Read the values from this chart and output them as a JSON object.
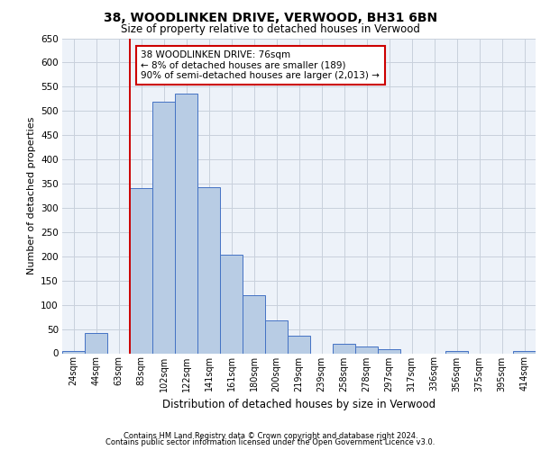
{
  "title_line1": "38, WOODLINKEN DRIVE, VERWOOD, BH31 6BN",
  "title_line2": "Size of property relative to detached houses in Verwood",
  "xlabel": "Distribution of detached houses by size in Verwood",
  "ylabel": "Number of detached properties",
  "categories": [
    "24sqm",
    "44sqm",
    "63sqm",
    "83sqm",
    "102sqm",
    "122sqm",
    "141sqm",
    "161sqm",
    "180sqm",
    "200sqm",
    "219sqm",
    "239sqm",
    "258sqm",
    "278sqm",
    "297sqm",
    "317sqm",
    "336sqm",
    "356sqm",
    "375sqm",
    "395sqm",
    "414sqm"
  ],
  "values": [
    5,
    42,
    0,
    340,
    520,
    535,
    343,
    204,
    120,
    67,
    37,
    0,
    19,
    14,
    8,
    0,
    0,
    5,
    0,
    0,
    5
  ],
  "bar_color": "#b8cce4",
  "bar_edge_color": "#4472c4",
  "grid_color": "#c8d0dc",
  "background_color": "#edf2f9",
  "vline_color": "#cc0000",
  "annotation_text": "38 WOODLINKEN DRIVE: 76sqm\n← 8% of detached houses are smaller (189)\n90% of semi-detached houses are larger (2,013) →",
  "annotation_box_color": "#ffffff",
  "annotation_box_edge_color": "#cc0000",
  "ylim": [
    0,
    650
  ],
  "yticks": [
    0,
    50,
    100,
    150,
    200,
    250,
    300,
    350,
    400,
    450,
    500,
    550,
    600,
    650
  ],
  "footer_line1": "Contains HM Land Registry data © Crown copyright and database right 2024.",
  "footer_line2": "Contains public sector information licensed under the Open Government Licence v3.0."
}
